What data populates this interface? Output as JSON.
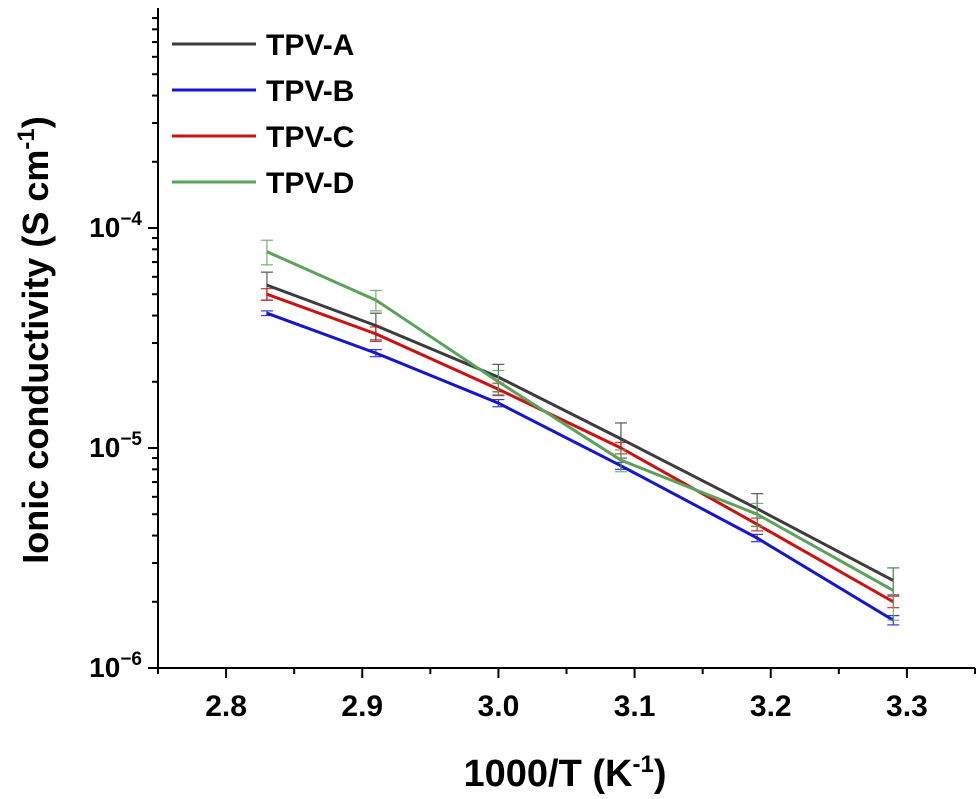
{
  "chart_data": {
    "type": "line",
    "xlabel": "1000/T (K",
    "xlabel_sup": "-1",
    "xlabel_end": ")",
    "ylabel": "Ionic conductivity (S cm",
    "ylabel_sup": "-1",
    "ylabel_end": ")",
    "yscale": "log",
    "xlim": [
      2.75,
      3.35
    ],
    "ylim": [
      1e-06,
      0.001
    ],
    "xticks": [
      2.8,
      2.9,
      3.0,
      3.1,
      3.2,
      3.3
    ],
    "xtick_labels": [
      "2.8",
      "2.9",
      "3.0",
      "3.1",
      "3.2",
      "3.3"
    ],
    "yticks": [
      {
        "value": 1e-06,
        "base": "10",
        "exp": "−6"
      },
      {
        "value": 1e-05,
        "base": "10",
        "exp": "−5"
      },
      {
        "value": 0.0001,
        "base": "10",
        "exp": "−4"
      }
    ],
    "legend_position": "top-left",
    "x": [
      2.83,
      2.91,
      3.0,
      3.09,
      3.19,
      3.29
    ],
    "series": [
      {
        "name": "TPV-A",
        "color": "#3c3c3c",
        "values": [
          5.5e-05,
          3.6e-05,
          2.1e-05,
          1.1e-05,
          5.3e-06,
          2.5e-06
        ],
        "errors": [
          8e-06,
          5e-06,
          3e-06,
          2e-06,
          9e-07,
          3.5e-07
        ]
      },
      {
        "name": "TPV-B",
        "color": "#1515cf",
        "values": [
          4.1e-05,
          2.7e-05,
          1.6e-05,
          8.3e-06,
          3.9e-06,
          1.65e-06
        ],
        "errors": [
          1e-06,
          1e-06,
          6e-07,
          3e-07,
          1.5e-07,
          8e-08
        ]
      },
      {
        "name": "TPV-C",
        "color": "#cc1111",
        "values": [
          5e-05,
          3.3e-05,
          1.85e-05,
          1e-05,
          4.5e-06,
          2e-06
        ],
        "errors": [
          3e-06,
          2.5e-06,
          1.2e-06,
          6e-07,
          3e-07,
          1.2e-07
        ]
      },
      {
        "name": "TPV-D",
        "color": "#5ba35b",
        "values": [
          7.8e-05,
          4.7e-05,
          2e-05,
          8.8e-06,
          5e-06,
          2.25e-06
        ],
        "errors": [
          1e-05,
          5e-06,
          2.5e-06,
          1e-06,
          6e-07,
          6e-07
        ]
      }
    ]
  }
}
